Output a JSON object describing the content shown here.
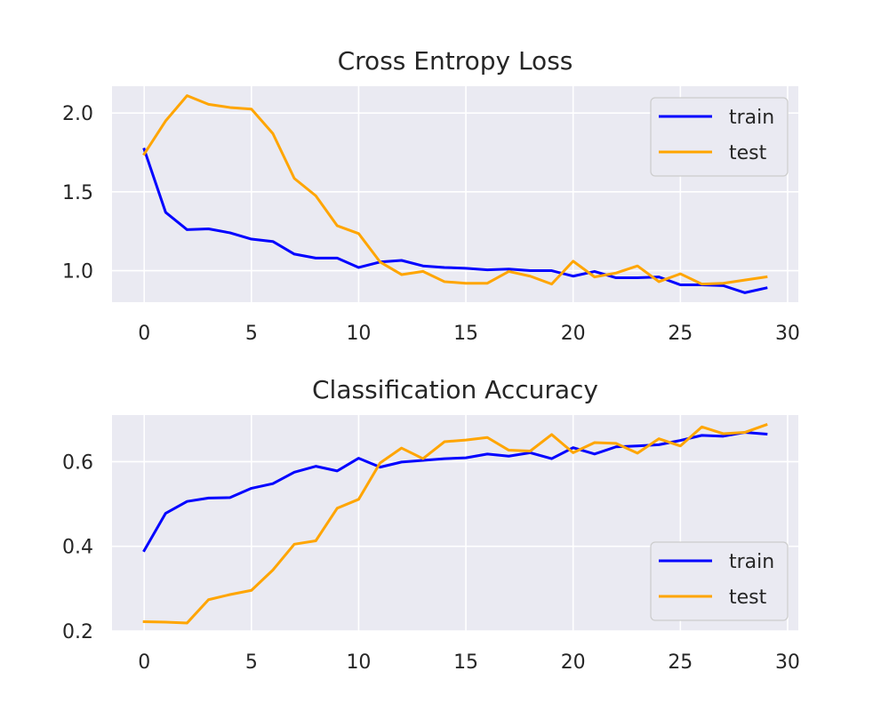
{
  "colors": {
    "train": "#0000ff",
    "test": "#ffa500",
    "axes_background": "#eaeaf2",
    "grid": "#ffffff",
    "text": "#262626"
  },
  "chart_data": [
    {
      "type": "line",
      "title": "Cross Entropy Loss",
      "xlabel": "",
      "ylabel": "",
      "xlim": [
        -1.5,
        30.5
      ],
      "ylim": [
        0.8,
        2.17
      ],
      "xticks": [
        0,
        5,
        10,
        15,
        20,
        25,
        30
      ],
      "yticks": [
        1.0,
        1.5,
        2.0
      ],
      "ytick_labels": [
        "1.0",
        "1.5",
        "2.0"
      ],
      "grid": true,
      "legend": "top-right",
      "x": [
        0,
        1,
        2,
        3,
        4,
        5,
        6,
        7,
        8,
        9,
        10,
        11,
        12,
        13,
        14,
        15,
        16,
        17,
        18,
        19,
        20,
        21,
        22,
        23,
        24,
        25,
        26,
        27,
        28,
        29
      ],
      "series": [
        {
          "name": "train",
          "color": "#0000ff",
          "values": [
            1.77,
            1.37,
            1.26,
            1.265,
            1.24,
            1.2,
            1.185,
            1.105,
            1.08,
            1.08,
            1.02,
            1.055,
            1.065,
            1.03,
            1.02,
            1.015,
            1.005,
            1.01,
            1.0,
            1.0,
            0.965,
            0.995,
            0.955,
            0.955,
            0.96,
            0.91,
            0.91,
            0.905,
            0.86,
            0.89
          ]
        },
        {
          "name": "test",
          "color": "#ffa500",
          "values": [
            1.74,
            1.95,
            2.11,
            2.055,
            2.035,
            2.025,
            1.87,
            1.585,
            1.475,
            1.285,
            1.235,
            1.055,
            0.975,
            0.995,
            0.93,
            0.92,
            0.92,
            0.995,
            0.965,
            0.915,
            1.06,
            0.96,
            0.985,
            1.03,
            0.93,
            0.98,
            0.915,
            0.92,
            0.94,
            0.96
          ]
        }
      ]
    },
    {
      "type": "line",
      "title": "Classification Accuracy",
      "xlabel": "",
      "ylabel": "",
      "xlim": [
        -1.5,
        30.5
      ],
      "ylim": [
        0.2,
        0.71
      ],
      "xticks": [
        0,
        5,
        10,
        15,
        20,
        25,
        30
      ],
      "yticks": [
        0.2,
        0.4,
        0.6
      ],
      "ytick_labels": [
        "0.2",
        "0.4",
        "0.6"
      ],
      "grid": true,
      "legend": "bottom-right",
      "x": [
        0,
        1,
        2,
        3,
        4,
        5,
        6,
        7,
        8,
        9,
        10,
        11,
        12,
        13,
        14,
        15,
        16,
        17,
        18,
        19,
        20,
        21,
        22,
        23,
        24,
        25,
        26,
        27,
        28,
        29
      ],
      "series": [
        {
          "name": "train",
          "color": "#0000ff",
          "values": [
            0.39,
            0.478,
            0.506,
            0.514,
            0.515,
            0.537,
            0.548,
            0.575,
            0.589,
            0.578,
            0.608,
            0.587,
            0.599,
            0.603,
            0.607,
            0.609,
            0.618,
            0.613,
            0.621,
            0.607,
            0.633,
            0.618,
            0.635,
            0.637,
            0.64,
            0.65,
            0.662,
            0.66,
            0.669,
            0.665
          ]
        },
        {
          "name": "test",
          "color": "#ffa500",
          "values": [
            0.222,
            0.221,
            0.219,
            0.274,
            0.286,
            0.296,
            0.344,
            0.405,
            0.413,
            0.49,
            0.511,
            0.597,
            0.632,
            0.607,
            0.647,
            0.651,
            0.657,
            0.627,
            0.625,
            0.664,
            0.621,
            0.645,
            0.643,
            0.62,
            0.654,
            0.637,
            0.682,
            0.666,
            0.669,
            0.687
          ]
        }
      ]
    }
  ]
}
